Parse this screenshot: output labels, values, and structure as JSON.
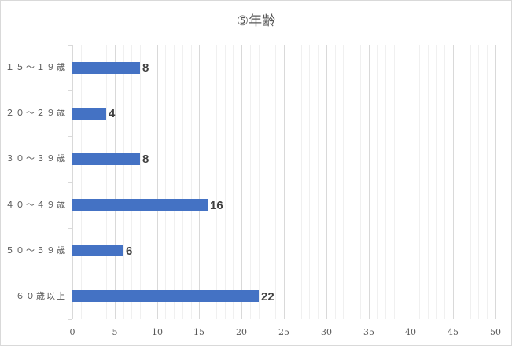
{
  "chart_data": {
    "type": "bar",
    "orientation": "horizontal",
    "title": "⑤年齢",
    "categories": [
      "１５～１９歳",
      "２０～２９歳",
      "３０～３９歳",
      "４０～４９歳",
      "５０～５９歳",
      "６０歳以上"
    ],
    "values": [
      8,
      4,
      8,
      16,
      6,
      22
    ],
    "data_labels": [
      "8",
      "4",
      "8",
      "16",
      "6",
      "22"
    ],
    "xlabel": "",
    "ylabel": "",
    "xlim": [
      0,
      50
    ],
    "x_ticks": [
      "0",
      "5",
      "10",
      "15",
      "20",
      "25",
      "30",
      "35",
      "40",
      "45",
      "50"
    ],
    "major_unit": 5,
    "minor_unit": 1,
    "grid": true,
    "legend": null,
    "bar_color": "#4472c4"
  }
}
